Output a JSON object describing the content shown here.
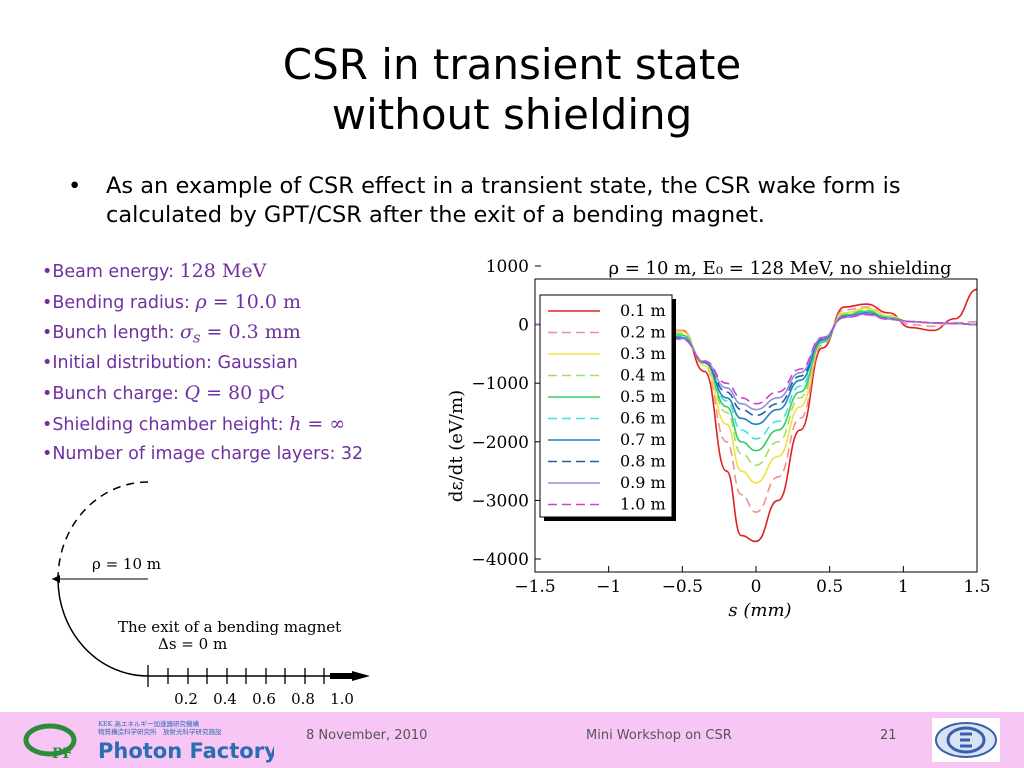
{
  "slide": {
    "title_line1": "CSR in transient state",
    "title_line2": "without shielding",
    "bullet_marker": "•",
    "bullet_text": "As an example of CSR effect in a transient state, the CSR wake form is calculated by GPT/CSR after the exit of a bending magnet."
  },
  "params": [
    {
      "label": "•Beam energy: ",
      "math": "128 MeV"
    },
    {
      "label": "•Bending radius: ",
      "sym": "ρ",
      "math": " = 10.0 m"
    },
    {
      "label": "•Bunch length: ",
      "sym": "σ",
      "sub": "s",
      "math": " = 0.3 mm"
    },
    {
      "label": "•Initial distribution: Gaussian"
    },
    {
      "label": "•Bunch charge: ",
      "sym": "Q",
      "math": " = 80 pC"
    },
    {
      "label": "•Shielding chamber height: ",
      "sym": "h",
      "math": " = ∞"
    },
    {
      "label": "•Number of image charge layers: 32"
    }
  ],
  "diagram": {
    "rho_label": "ρ = 10 m",
    "exit_label": "The exit of a bending magnet",
    "delta_label": "Δs = 0 m",
    "ticks": [
      "0.2",
      "0.4",
      "0.6",
      "0.8",
      "1.0"
    ]
  },
  "chart_data": {
    "type": "line",
    "title": "ρ = 10 m, E₀ = 128 MeV, no shielding",
    "xlabel": "s (mm)",
    "ylabel": "dε/dt (eV/m)",
    "xlim": [
      -1.5,
      1.5
    ],
    "ylim": [
      -4000,
      1000
    ],
    "xticks": [
      "−1.5",
      "−1",
      "−0.5",
      "0",
      "0.5",
      "1",
      "1.5"
    ],
    "yticks": [
      "1000",
      "0",
      "−1000",
      "−2000",
      "−3000",
      "−4000"
    ],
    "legend_position": "top-left",
    "series": [
      {
        "name": "0.1 m",
        "color": "#e02020",
        "dash": "solid",
        "x": [
          -1.5,
          -0.8,
          -0.5,
          -0.35,
          -0.2,
          -0.1,
          0,
          0.15,
          0.3,
          0.45,
          0.6,
          0.75,
          0.9,
          1.05,
          1.2,
          1.35,
          1.5
        ],
        "y": [
          0,
          0,
          -100,
          -800,
          -2500,
          -3600,
          -3700,
          -3000,
          -1800,
          -400,
          300,
          350,
          200,
          -50,
          -100,
          100,
          600
        ]
      },
      {
        "name": "0.2 m",
        "color": "#f09090",
        "dash": "dash",
        "x": [
          -1.5,
          -0.8,
          -0.5,
          -0.35,
          -0.2,
          -0.1,
          0,
          0.15,
          0.3,
          0.45,
          0.6,
          0.75,
          0.9,
          1.05,
          1.2,
          1.35,
          1.5
        ],
        "y": [
          0,
          0,
          -100,
          -700,
          -2000,
          -2900,
          -3200,
          -2600,
          -1600,
          -350,
          250,
          300,
          150,
          0,
          -30,
          30,
          50
        ]
      },
      {
        "name": "0.3 m",
        "color": "#f0e040",
        "dash": "solid",
        "x": [
          -1.5,
          -0.8,
          -0.5,
          -0.35,
          -0.2,
          -0.1,
          0,
          0.15,
          0.3,
          0.45,
          0.6,
          0.75,
          0.9,
          1.05,
          1.2,
          1.35,
          1.5
        ],
        "y": [
          0,
          0,
          -120,
          -700,
          -1700,
          -2500,
          -2700,
          -2250,
          -1400,
          -300,
          200,
          280,
          150,
          50,
          30,
          20,
          0
        ]
      },
      {
        "name": "0.4 m",
        "color": "#a0e060",
        "dash": "dash",
        "x": [
          -1.5,
          -0.8,
          -0.5,
          -0.35,
          -0.2,
          -0.1,
          0,
          0.15,
          0.3,
          0.45,
          0.6,
          0.75,
          0.9,
          1.05,
          1.2,
          1.35,
          1.5
        ],
        "y": [
          0,
          0,
          -150,
          -650,
          -1500,
          -2200,
          -2400,
          -2000,
          -1250,
          -300,
          180,
          250,
          130,
          50,
          30,
          20,
          0
        ]
      },
      {
        "name": "0.5 m",
        "color": "#30d060",
        "dash": "solid",
        "x": [
          -1.5,
          -0.8,
          -0.5,
          -0.35,
          -0.2,
          -0.1,
          0,
          0.15,
          0.3,
          0.45,
          0.6,
          0.75,
          0.9,
          1.05,
          1.2,
          1.35,
          1.5
        ],
        "y": [
          0,
          0,
          -180,
          -650,
          -1400,
          -2000,
          -2150,
          -1800,
          -1150,
          -300,
          160,
          230,
          120,
          50,
          30,
          20,
          0
        ]
      },
      {
        "name": "0.6 m",
        "color": "#40e0e0",
        "dash": "dash",
        "x": [
          -1.5,
          -0.8,
          -0.5,
          -0.35,
          -0.2,
          -0.1,
          0,
          0.15,
          0.3,
          0.45,
          0.6,
          0.75,
          0.9,
          1.05,
          1.2,
          1.35,
          1.5
        ],
        "y": [
          0,
          0,
          -200,
          -650,
          -1300,
          -1800,
          -1950,
          -1650,
          -1050,
          -280,
          150,
          210,
          110,
          50,
          30,
          20,
          0
        ]
      },
      {
        "name": "0.7 m",
        "color": "#2080c0",
        "dash": "solid",
        "x": [
          -1.5,
          -0.8,
          -0.5,
          -0.35,
          -0.2,
          -0.1,
          0,
          0.15,
          0.3,
          0.45,
          0.6,
          0.75,
          0.9,
          1.05,
          1.2,
          1.35,
          1.5
        ],
        "y": [
          0,
          0,
          -220,
          -650,
          -1250,
          -1600,
          -1700,
          -1450,
          -950,
          -260,
          140,
          200,
          100,
          50,
          30,
          20,
          0
        ]
      },
      {
        "name": "0.8 m",
        "color": "#2060a0",
        "dash": "dash",
        "x": [
          -1.5,
          -0.8,
          -0.5,
          -0.35,
          -0.2,
          -0.1,
          0,
          0.15,
          0.3,
          0.45,
          0.6,
          0.75,
          0.9,
          1.05,
          1.2,
          1.35,
          1.5
        ],
        "y": [
          0,
          0,
          -230,
          -640,
          -1150,
          -1450,
          -1550,
          -1350,
          -880,
          -240,
          130,
          190,
          100,
          50,
          30,
          20,
          0
        ]
      },
      {
        "name": "0.9 m",
        "color": "#9090e0",
        "dash": "solid",
        "x": [
          -1.5,
          -0.8,
          -0.5,
          -0.35,
          -0.2,
          -0.1,
          0,
          0.15,
          0.3,
          0.45,
          0.6,
          0.75,
          0.9,
          1.05,
          1.2,
          1.35,
          1.5
        ],
        "y": [
          0,
          0,
          -240,
          -630,
          -1080,
          -1350,
          -1450,
          -1250,
          -820,
          -230,
          125,
          180,
          95,
          50,
          30,
          20,
          0
        ]
      },
      {
        "name": "1.0 m",
        "color": "#d040d0",
        "dash": "dash",
        "x": [
          -1.5,
          -0.8,
          -0.5,
          -0.35,
          -0.2,
          -0.1,
          0,
          0.15,
          0.3,
          0.45,
          0.6,
          0.75,
          0.9,
          1.05,
          1.2,
          1.35,
          1.5
        ],
        "y": [
          0,
          0,
          -250,
          -620,
          -1000,
          -1250,
          -1350,
          -1150,
          -760,
          -220,
          120,
          170,
          90,
          50,
          30,
          20,
          0
        ]
      }
    ]
  },
  "footer": {
    "date": "8 November, 2010",
    "event": "Mini Workshop on CSR",
    "page": "21",
    "logo_name": "Photon Factory",
    "logo_sub1": "KEK 高エネルギー加速器研究機構",
    "logo_sub2": "物質構造科学研究所　放射光科学研究施設",
    "colors": {
      "footer_bg": "#f7c6f4",
      "logo_green": "#2e8b3a",
      "logo_text": "#2a6db0"
    }
  }
}
